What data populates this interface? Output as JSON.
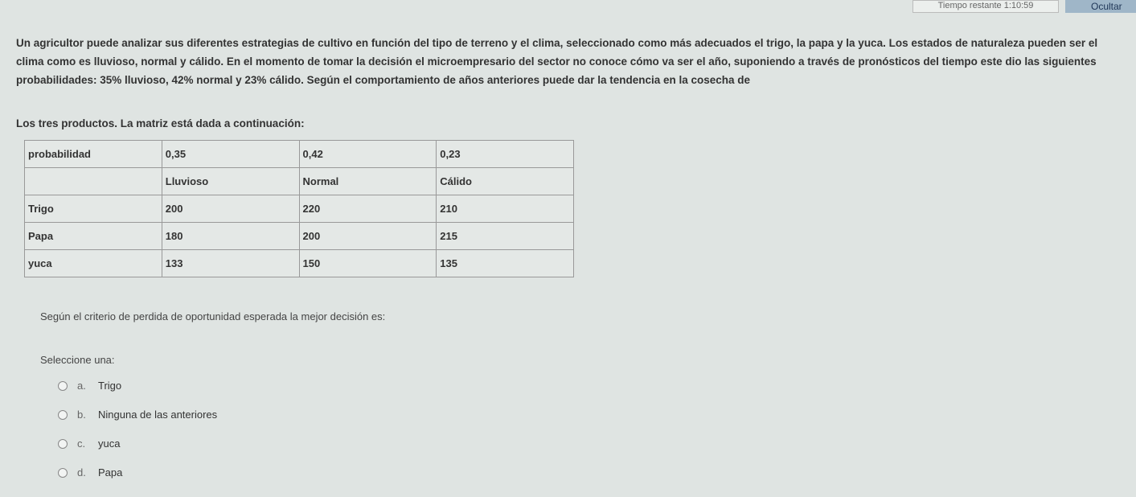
{
  "header": {
    "timer": "Tiempo restante 1:10:59",
    "hide_label": "Ocultar"
  },
  "question": {
    "text": "Un agricultor puede analizar sus diferentes estrategias de cultivo en función del tipo de terreno y el clima, seleccionado como más adecuados el trigo, la papa y la yuca. Los estados de naturaleza pueden ser el clima como es lluvioso, normal y cálido. En el momento de tomar la decisión el microempresario del sector no conoce cómo va ser el año, suponiendo a través de pronósticos del tiempo este dio las siguientes probabilidades: 35% lluvioso, 42% normal y 23% cálido. Según el comportamiento de años anteriores puede dar la tendencia en la cosecha de",
    "intro": "Los tres productos. La matriz está dada a continuación:",
    "table": [
      [
        "probabilidad",
        "0,35",
        "0,42",
        "0,23"
      ],
      [
        "",
        "Lluvioso",
        "Normal",
        "Cálido"
      ],
      [
        "Trigo",
        "200",
        "220",
        "210"
      ],
      [
        "Papa",
        "180",
        "200",
        "215"
      ],
      [
        "yuca",
        "133",
        "150",
        "135"
      ]
    ],
    "prompt": "Según el criterio de perdida de oportunidad esperada la mejor decisión es:",
    "select_label": "Seleccione una:",
    "options": [
      {
        "letter": "a.",
        "label": "Trigo"
      },
      {
        "letter": "b.",
        "label": "Ninguna de las anteriores"
      },
      {
        "letter": "c.",
        "label": "yuca"
      },
      {
        "letter": "d.",
        "label": "Papa"
      }
    ]
  }
}
